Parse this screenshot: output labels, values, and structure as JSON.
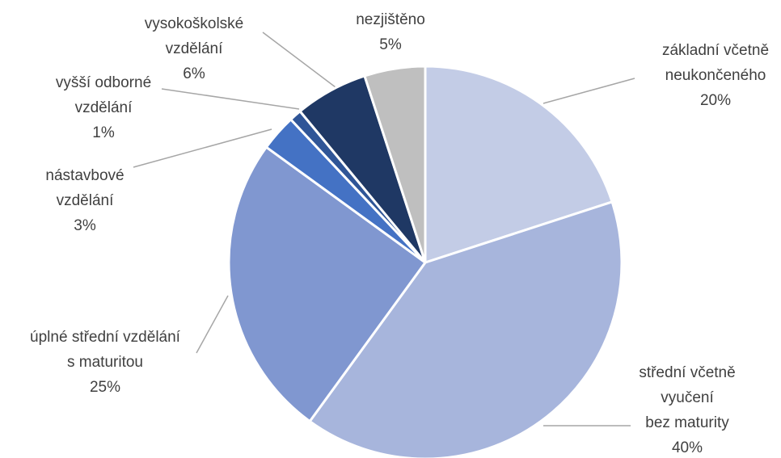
{
  "chart_data": {
    "type": "pie",
    "categories": [
      "základní včetně\nneukončeného",
      "střední včetně\nvyučení\nbez maturity",
      "úplné střední vzdělání\ns maturitou",
      "nástavbové\nvzdělání",
      "vyšší odborné\nvzdělání",
      "vysokoškolské\nvzdělání",
      "nezjištěno"
    ],
    "values": [
      20,
      40,
      25,
      3,
      1,
      6,
      5
    ],
    "value_labels": [
      "20%",
      "40%",
      "25%",
      "3%",
      "1%",
      "6%",
      "5%"
    ],
    "colors": [
      "#c3cce6",
      "#a7b5dc",
      "#8097d0",
      "#4472c4",
      "#2f5597",
      "#1f3864",
      "#bfbfbf"
    ]
  }
}
